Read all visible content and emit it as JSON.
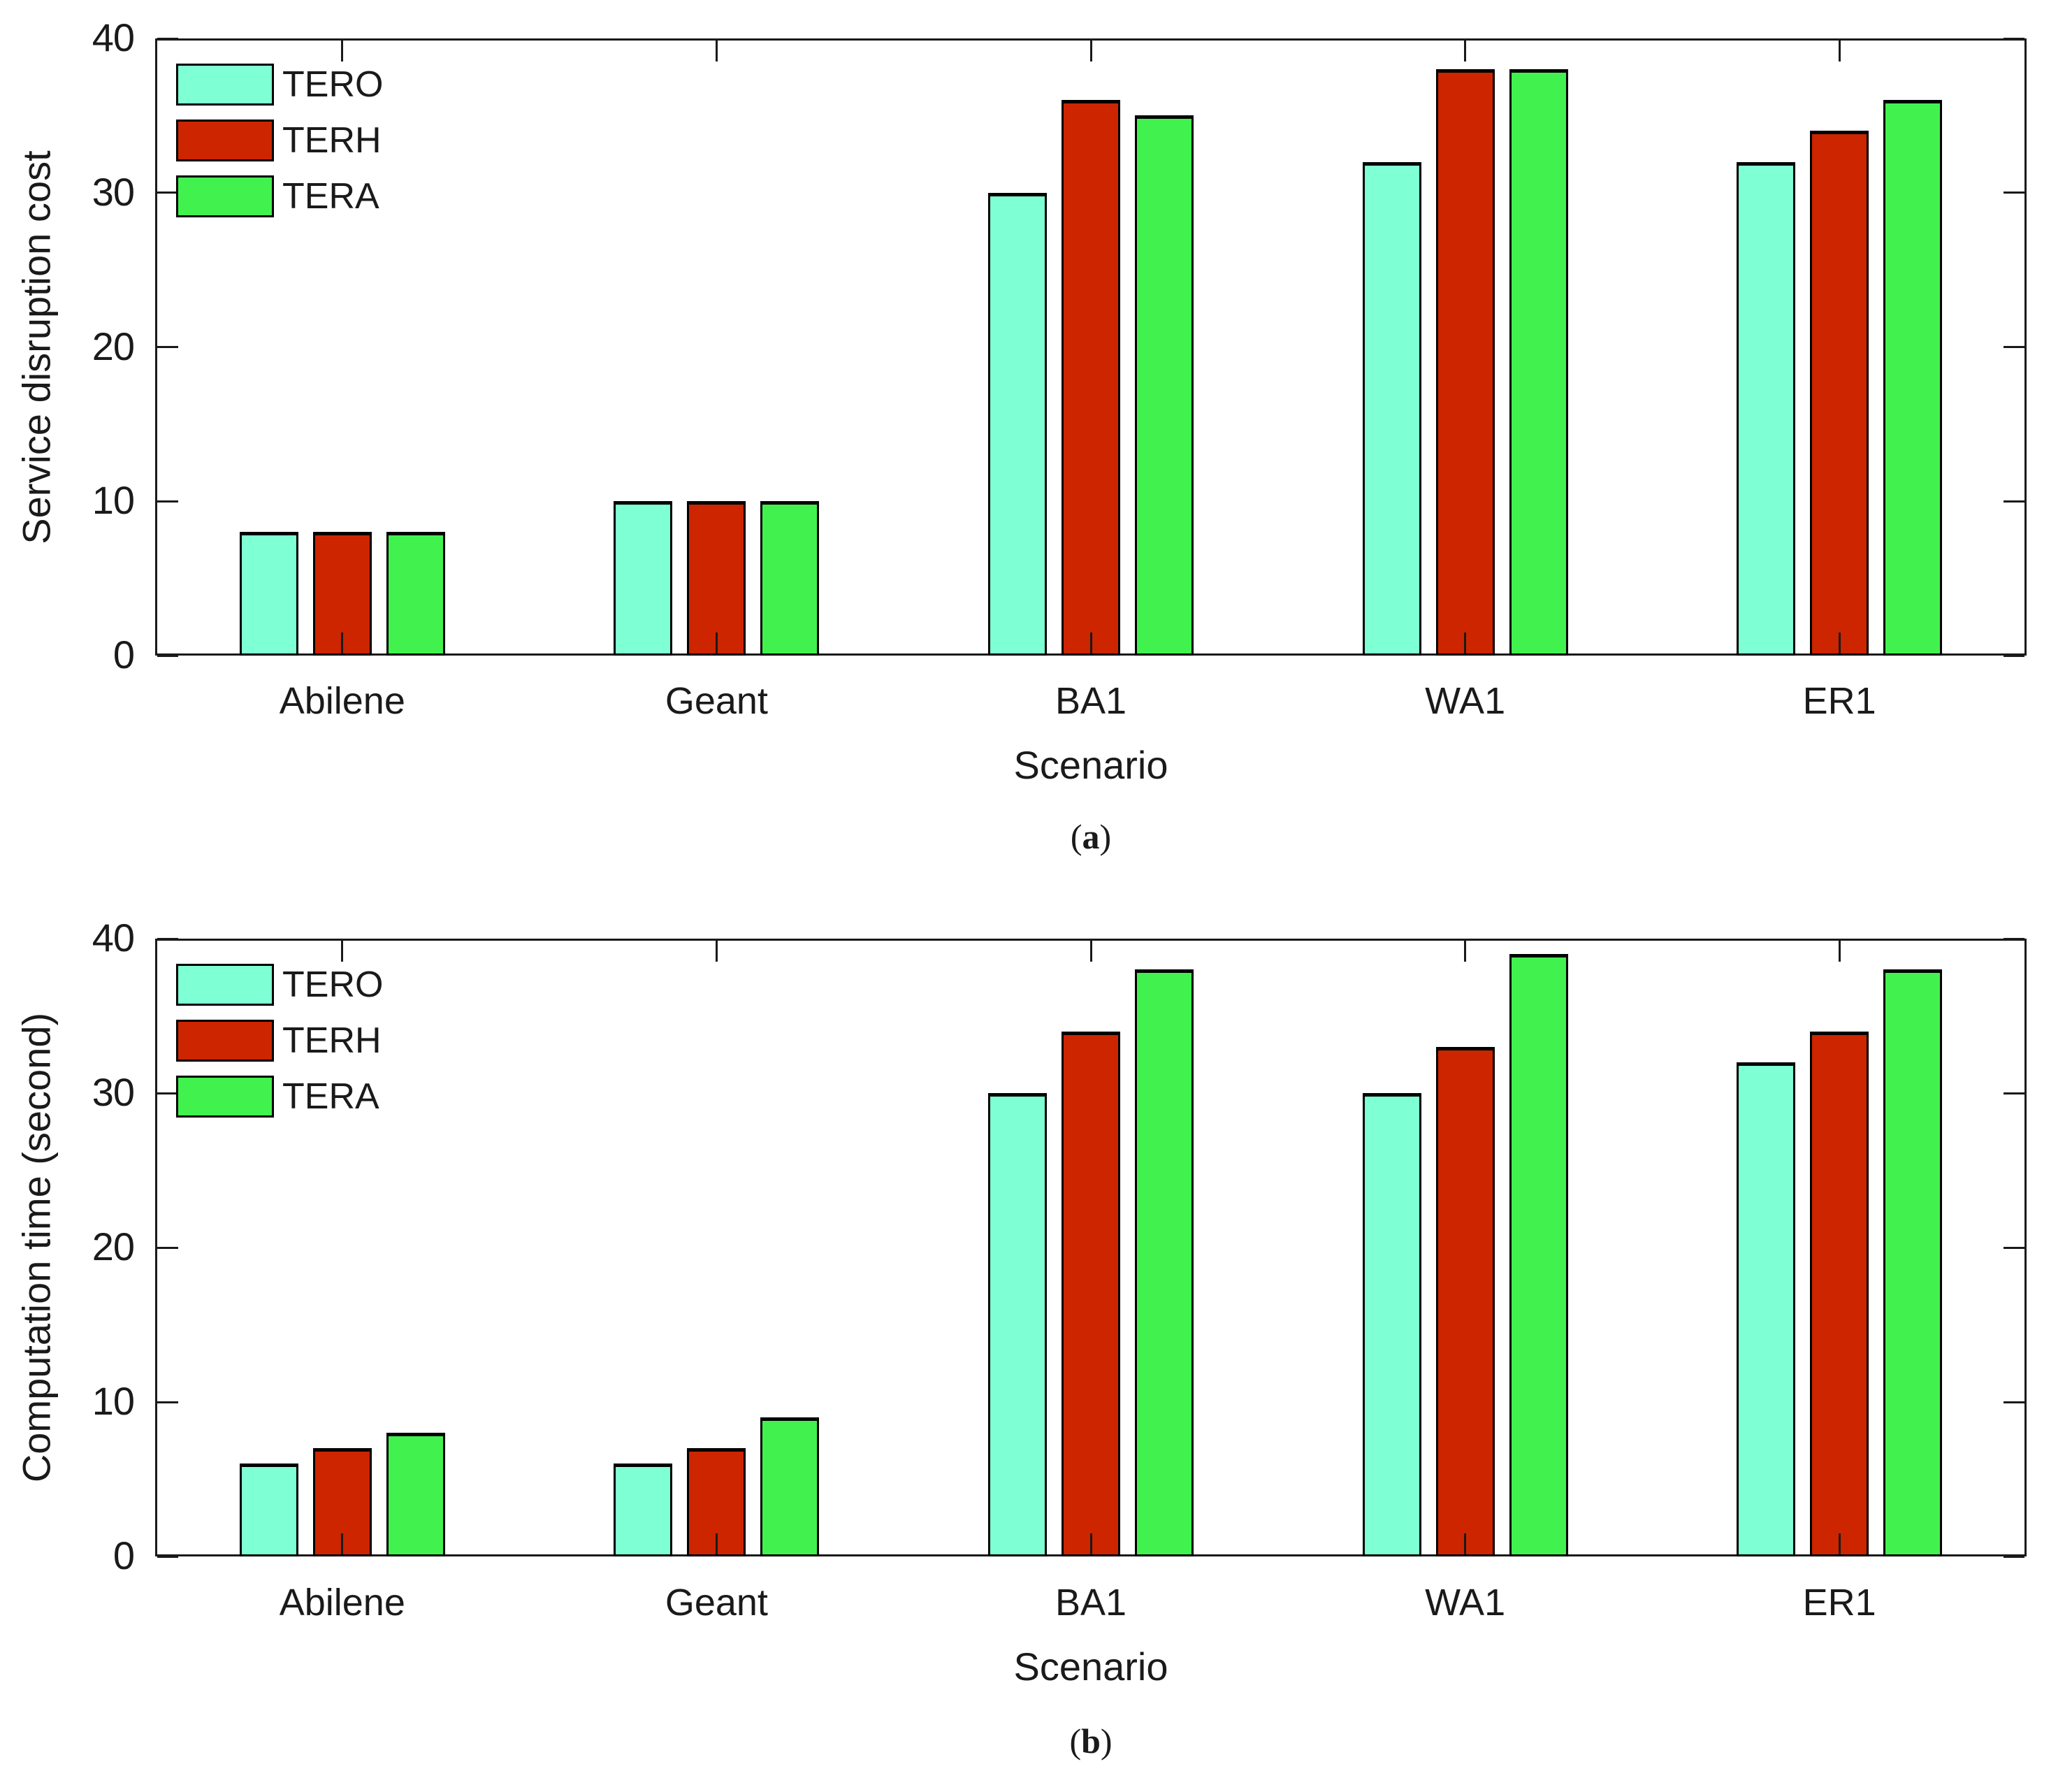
{
  "figure": {
    "background": "#ffffff",
    "text_color": "#1a1a1a",
    "axis_color": "#1a1a1a",
    "bar_edge_color": "#000000"
  },
  "chart_data": [
    {
      "type": "bar",
      "panel": "a",
      "categories": [
        "Abilene",
        "Geant",
        "BA1",
        "WA1",
        "ER1"
      ],
      "series": [
        {
          "name": "TERO",
          "color": "#7FFFD4",
          "values": [
            8,
            10,
            30,
            32,
            32
          ]
        },
        {
          "name": "TERH",
          "color": "#CC2500",
          "values": [
            8,
            10,
            36,
            38,
            34
          ]
        },
        {
          "name": "TERA",
          "color": "#41F24E",
          "values": [
            8,
            10,
            35,
            38,
            36
          ]
        }
      ],
      "xlabel": "Scenario",
      "ylabel": "Service disruption cost",
      "ylim": [
        0,
        40
      ],
      "yticks": [
        0,
        10,
        20,
        30,
        40
      ],
      "grid": "off",
      "legend_position": "top-left",
      "caption": {
        "prefix": "(",
        "letter": "a",
        "suffix": ")"
      }
    },
    {
      "type": "bar",
      "panel": "b",
      "categories": [
        "Abilene",
        "Geant",
        "BA1",
        "WA1",
        "ER1"
      ],
      "series": [
        {
          "name": "TERO",
          "color": "#7FFFD4",
          "values": [
            6,
            6,
            30,
            30,
            32
          ]
        },
        {
          "name": "TERH",
          "color": "#CC2500",
          "values": [
            7,
            7,
            34,
            33,
            34
          ]
        },
        {
          "name": "TERA",
          "color": "#41F24E",
          "values": [
            8,
            9,
            38,
            39,
            38
          ]
        }
      ],
      "xlabel": "Scenario",
      "ylabel": "Computation time (second)",
      "ylim": [
        0,
        40
      ],
      "yticks": [
        0,
        10,
        20,
        30,
        40
      ],
      "grid": "off",
      "legend_position": "top-left",
      "caption": {
        "prefix": "(",
        "letter": "b",
        "suffix": ")"
      }
    }
  ]
}
